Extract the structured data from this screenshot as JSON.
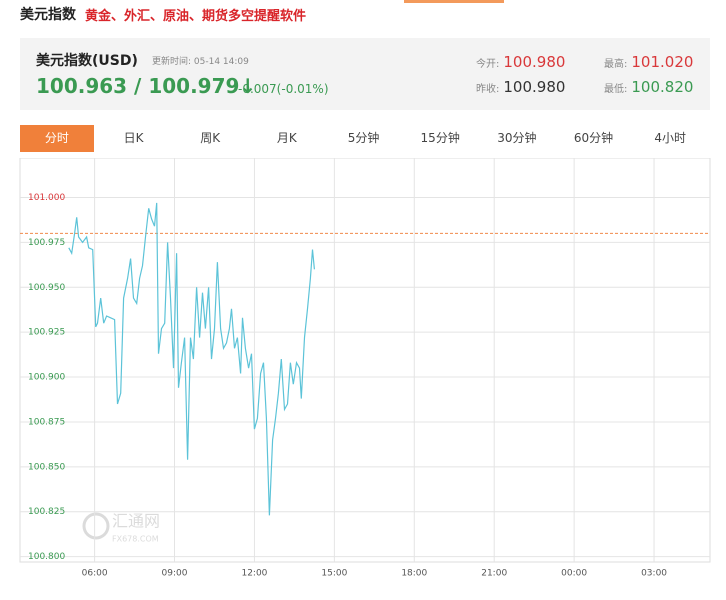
{
  "header": {
    "title": "美元指数",
    "promo": "黄金、外汇、原油、期货多空提醒软件"
  },
  "quote": {
    "name": "美元指数(USD)",
    "update_label": "更新时间:",
    "update_time": "05-14 14:09",
    "price": "100.963 / 100.979↓",
    "change": "-0.007(-0.01%)",
    "open_label": "今开:",
    "open": "100.980",
    "high_label": "最高:",
    "high": "101.020",
    "prev_label": "昨收:",
    "prev": "100.980",
    "low_label": "最低:",
    "low": "100.820"
  },
  "tabs": [
    "分时",
    "日K",
    "周K",
    "月K",
    "5分钟",
    "15分钟",
    "30分钟",
    "60分钟",
    "4小时"
  ],
  "active_tab": 0,
  "watermark": {
    "name": "汇通网",
    "site": "FX678.COM"
  },
  "chart_data": {
    "type": "line",
    "x": [
      5.03,
      5.14,
      5.25,
      5.33,
      5.4,
      5.55,
      5.7,
      5.78,
      5.93,
      6.04,
      6.11,
      6.23,
      6.34,
      6.45,
      6.6,
      6.75,
      6.86,
      6.98,
      7.09,
      7.24,
      7.35,
      7.46,
      7.58,
      7.69,
      7.8,
      7.91,
      8.03,
      8.14,
      8.25,
      8.33,
      8.4,
      8.51,
      8.63,
      8.74,
      8.85,
      8.96,
      9.08,
      9.15,
      9.26,
      9.38,
      9.49,
      9.6,
      9.71,
      9.83,
      9.94,
      10.05,
      10.16,
      10.28,
      10.39,
      10.5,
      10.61,
      10.73,
      10.84,
      10.95,
      11.06,
      11.14,
      11.25,
      11.36,
      11.48,
      11.55,
      11.66,
      11.78,
      11.89,
      12.0,
      12.11,
      12.23,
      12.34,
      12.45,
      12.56,
      12.68,
      12.79,
      12.9,
      13.01,
      13.13,
      13.24,
      13.35,
      13.46,
      13.58,
      13.69,
      13.76,
      13.88,
      13.99,
      14.1,
      14.18,
      14.25
    ],
    "series": [
      {
        "color": "#5cc3d8",
        "values": [
          100.972,
          100.969,
          100.98,
          100.989,
          100.978,
          100.975,
          100.978,
          100.972,
          100.971,
          100.928,
          100.93,
          100.944,
          100.93,
          100.934,
          100.933,
          100.932,
          100.885,
          100.891,
          100.944,
          100.955,
          100.966,
          100.944,
          100.941,
          100.955,
          100.962,
          100.978,
          100.994,
          100.988,
          100.984,
          100.997,
          100.913,
          100.927,
          100.93,
          100.975,
          100.944,
          100.905,
          100.969,
          100.894,
          100.908,
          100.922,
          100.854,
          100.922,
          100.91,
          100.95,
          100.922,
          100.947,
          100.927,
          100.95,
          100.91,
          100.927,
          100.964,
          100.927,
          100.916,
          100.919,
          100.927,
          100.938,
          100.916,
          100.922,
          100.902,
          100.933,
          100.916,
          100.905,
          100.913,
          100.871,
          100.877,
          100.902,
          100.908,
          100.877,
          100.823,
          100.865,
          100.877,
          100.891,
          100.91,
          100.882,
          100.885,
          100.908,
          100.896,
          100.908,
          100.905,
          100.888,
          100.922,
          100.938,
          100.955,
          100.971,
          100.96
        ]
      }
    ],
    "baseline": 100.98,
    "baseline_color": "#f08a4b",
    "up_color": "#d9383a",
    "down_color": "#3a9a52",
    "xlim": [
      3.2,
      29.1
    ],
    "ylim": [
      100.797,
      101.022
    ],
    "xticks": [
      {
        "value": 6,
        "label": "06:00"
      },
      {
        "value": 9,
        "label": "09:00"
      },
      {
        "value": 12,
        "label": "12:00"
      },
      {
        "value": 15,
        "label": "15:00"
      },
      {
        "value": 18,
        "label": "18:00"
      },
      {
        "value": 21,
        "label": "21:00"
      },
      {
        "value": 24,
        "label": "00:00"
      },
      {
        "value": 27,
        "label": "03:00"
      }
    ],
    "yticks": [
      {
        "value": 100.8,
        "label": "100.800"
      },
      {
        "value": 100.825,
        "label": "100.825"
      },
      {
        "value": 100.85,
        "label": "100.850"
      },
      {
        "value": 100.875,
        "label": "100.875"
      },
      {
        "value": 100.9,
        "label": "100.900"
      },
      {
        "value": 100.925,
        "label": "100.925"
      },
      {
        "value": 100.95,
        "label": "100.950"
      },
      {
        "value": 100.975,
        "label": "100.975"
      },
      {
        "value": 101,
        "label": "101.000"
      }
    ],
    "grid": true
  }
}
